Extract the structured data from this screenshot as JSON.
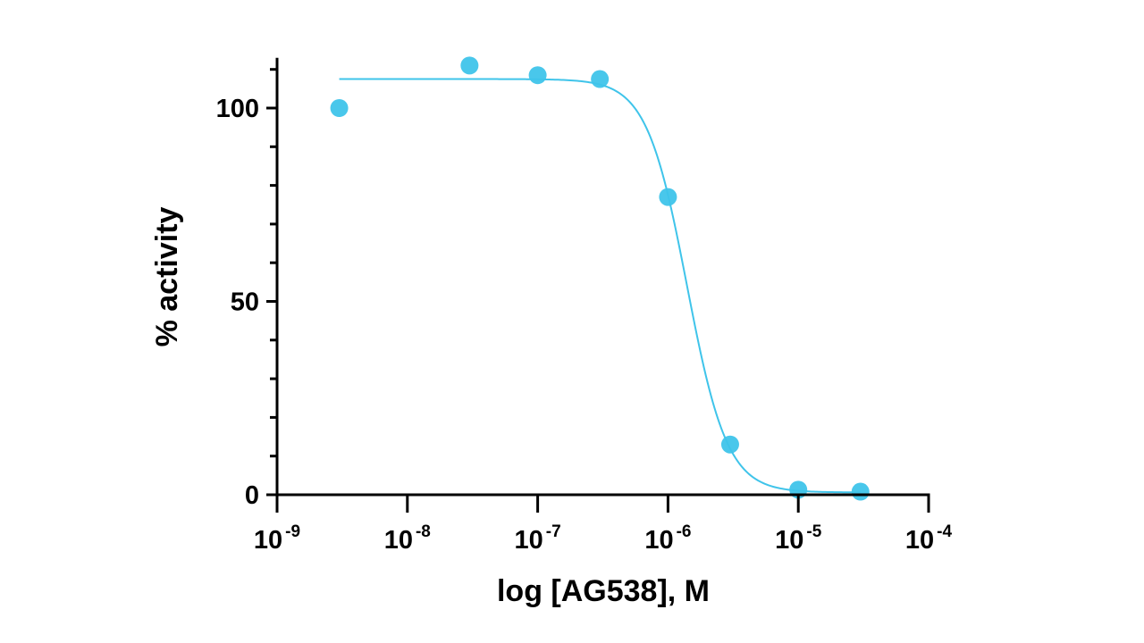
{
  "chart_data": {
    "type": "scatter",
    "title": "",
    "xlabel": "log [AG538], M",
    "ylabel": "% activity",
    "x_scale": "log",
    "xlim": [
      1e-09,
      0.0001
    ],
    "ylim": [
      0,
      113
    ],
    "y_ticks": [
      0,
      50,
      100
    ],
    "x_ticks": [
      {
        "value": 1e-09,
        "base": "10",
        "exponent": "-9"
      },
      {
        "value": 1e-08,
        "base": "10",
        "exponent": "-8"
      },
      {
        "value": 1e-07,
        "base": "10",
        "exponent": "-7"
      },
      {
        "value": 1e-06,
        "base": "10",
        "exponent": "-6"
      },
      {
        "value": 1e-05,
        "base": "10",
        "exponent": "-5"
      },
      {
        "value": 0.0001,
        "base": "10",
        "exponent": "-4"
      }
    ],
    "grid": false,
    "legend": false,
    "series": [
      {
        "marker": "circle",
        "color": "#3fc4ea",
        "points": [
          {
            "x": 3e-09,
            "y": 100
          },
          {
            "x": 3e-08,
            "y": 111
          },
          {
            "x": 1e-07,
            "y": 108.5
          },
          {
            "x": 3e-07,
            "y": 107.5
          },
          {
            "x": 1e-06,
            "y": 77
          },
          {
            "x": 3e-06,
            "y": 13
          },
          {
            "x": 1e-05,
            "y": 1.3
          },
          {
            "x": 3e-05,
            "y": 0.8
          }
        ]
      }
    ],
    "fit_curve": {
      "model": "four-parameter logistic",
      "top": 107.5,
      "bottom": 0.6,
      "ic50": 1.4e-06,
      "hill_slope": -2.8,
      "x_range": [
        3e-09,
        3e-05
      ],
      "color": "#3fc4ea"
    }
  }
}
